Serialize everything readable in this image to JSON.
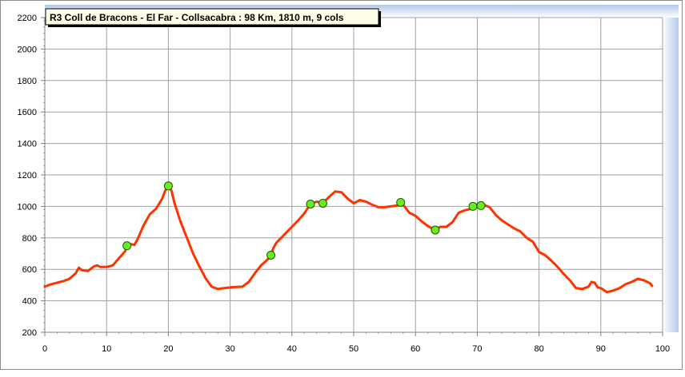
{
  "chart_data": {
    "type": "line",
    "title": "R3 Coll de Bracons - El Far - Collsacabra : 98 Km, 1810 m, 9 cols",
    "xlabel": "",
    "ylabel": "",
    "xlim": [
      0,
      100
    ],
    "ylim": [
      200,
      2200
    ],
    "x_ticks": [
      "0",
      "10",
      "20",
      "30",
      "40",
      "50",
      "60",
      "70",
      "80",
      "90",
      "100"
    ],
    "y_ticks": [
      "200",
      "400",
      "600",
      "800",
      "1000",
      "1200",
      "1400",
      "1600",
      "1800",
      "2000",
      "2200"
    ],
    "grid": true,
    "line_color": "#ff3300",
    "marker_color": "#66ee22",
    "series": [
      {
        "values": [
          [
            0,
            490
          ],
          [
            1,
            505
          ],
          [
            2,
            515
          ],
          [
            3,
            525
          ],
          [
            4,
            540
          ],
          [
            5,
            575
          ],
          [
            5.5,
            610
          ],
          [
            6,
            595
          ],
          [
            7,
            590
          ],
          [
            7.5,
            605
          ],
          [
            8,
            620
          ],
          [
            8.5,
            625
          ],
          [
            9,
            615
          ],
          [
            10,
            615
          ],
          [
            11,
            625
          ],
          [
            12,
            670
          ],
          [
            13,
            715
          ],
          [
            13.3,
            750
          ],
          [
            14,
            760
          ],
          [
            14.5,
            755
          ],
          [
            15,
            790
          ],
          [
            16,
            880
          ],
          [
            17,
            950
          ],
          [
            18,
            985
          ],
          [
            19,
            1050
          ],
          [
            19.5,
            1100
          ],
          [
            20,
            1130
          ],
          [
            20.5,
            1100
          ],
          [
            21,
            1020
          ],
          [
            22,
            900
          ],
          [
            23,
            800
          ],
          [
            24,
            700
          ],
          [
            25,
            620
          ],
          [
            26,
            545
          ],
          [
            27,
            490
          ],
          [
            28,
            475
          ],
          [
            29,
            480
          ],
          [
            30,
            485
          ],
          [
            31,
            488
          ],
          [
            32,
            490
          ],
          [
            33,
            520
          ],
          [
            34,
            575
          ],
          [
            35,
            625
          ],
          [
            36,
            660
          ],
          [
            36.6,
            690
          ],
          [
            37,
            735
          ],
          [
            37.5,
            770
          ],
          [
            38,
            790
          ],
          [
            39,
            830
          ],
          [
            40,
            870
          ],
          [
            41,
            910
          ],
          [
            42,
            955
          ],
          [
            43,
            1015
          ],
          [
            44,
            1030
          ],
          [
            45,
            1020
          ],
          [
            46,
            1060
          ],
          [
            47,
            1095
          ],
          [
            48,
            1090
          ],
          [
            49,
            1050
          ],
          [
            50,
            1020
          ],
          [
            51,
            1040
          ],
          [
            52,
            1030
          ],
          [
            53,
            1010
          ],
          [
            54,
            995
          ],
          [
            55,
            995
          ],
          [
            56,
            1000
          ],
          [
            57,
            1005
          ],
          [
            57.6,
            1025
          ],
          [
            58,
            1010
          ],
          [
            59,
            960
          ],
          [
            60,
            940
          ],
          [
            61,
            905
          ],
          [
            62,
            875
          ],
          [
            63.2,
            850
          ],
          [
            64,
            870
          ],
          [
            65,
            870
          ],
          [
            66,
            900
          ],
          [
            67,
            960
          ],
          [
            68,
            975
          ],
          [
            69,
            985
          ],
          [
            69.3,
            1000
          ],
          [
            70,
            1010
          ],
          [
            70.6,
            1005
          ],
          [
            71,
            1010
          ],
          [
            72,
            995
          ],
          [
            73,
            945
          ],
          [
            74,
            910
          ],
          [
            75,
            885
          ],
          [
            76,
            860
          ],
          [
            77,
            840
          ],
          [
            78,
            800
          ],
          [
            79,
            775
          ],
          [
            80,
            710
          ],
          [
            81,
            690
          ],
          [
            82,
            655
          ],
          [
            83,
            615
          ],
          [
            84,
            570
          ],
          [
            85,
            530
          ],
          [
            86,
            480
          ],
          [
            87,
            475
          ],
          [
            88,
            490
          ],
          [
            88.5,
            520
          ],
          [
            89,
            515
          ],
          [
            89.5,
            485
          ],
          [
            90,
            480
          ],
          [
            91,
            455
          ],
          [
            92,
            465
          ],
          [
            93,
            480
          ],
          [
            94,
            505
          ],
          [
            95,
            520
          ],
          [
            96,
            540
          ],
          [
            97,
            530
          ],
          [
            98,
            510
          ],
          [
            98.3,
            495
          ]
        ]
      }
    ],
    "markers": [
      [
        13.3,
        750
      ],
      [
        20,
        1130
      ],
      [
        36.6,
        690
      ],
      [
        43,
        1015
      ],
      [
        45,
        1020
      ],
      [
        57.6,
        1025
      ],
      [
        63.2,
        850
      ],
      [
        69.3,
        1000
      ],
      [
        70.6,
        1005
      ]
    ]
  }
}
